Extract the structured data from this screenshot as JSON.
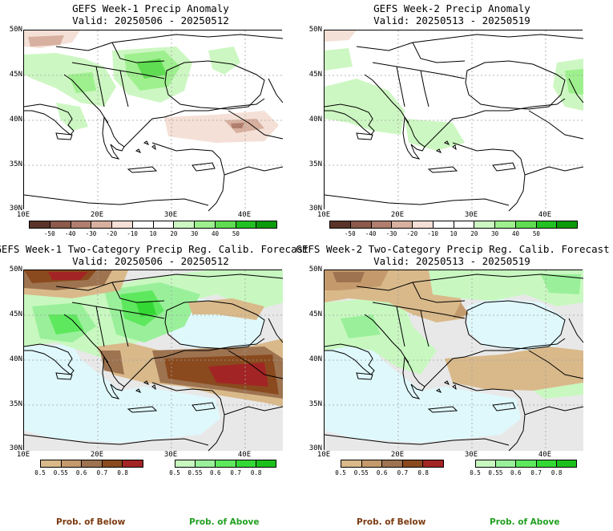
{
  "panels": [
    {
      "id": "p1",
      "title": "GEFS Week-1 Precip Anomaly",
      "valid": "Valid: 20250506 - 20250512"
    },
    {
      "id": "p2",
      "title": "GEFS Week-2 Precip Anomaly",
      "valid": "Valid: 20250513 - 20250519"
    },
    {
      "id": "p3",
      "title": "GEFS Week-1 Two-Category Precip Reg. Calib. Forecast",
      "valid": "Valid: 20250506 - 20250512"
    },
    {
      "id": "p4",
      "title": "GEFS Week-2 Two-Category Precip Reg. Calib. Forecast",
      "valid": "Valid: 20250513 - 20250519"
    }
  ],
  "axes": {
    "lat_labels": [
      "50N",
      "45N",
      "40N",
      "35N",
      "30N"
    ],
    "lon_labels": [
      "10E",
      "20E",
      "30E",
      "40E"
    ]
  },
  "anomaly_colorbar": {
    "labels": [
      "-50",
      "-40",
      "-30",
      "-20",
      "-10",
      "10",
      "20",
      "30",
      "40",
      "50"
    ],
    "colors": [
      "#5a3429",
      "#8b5a4a",
      "#b07e6e",
      "#d8b0a0",
      "#f4e0d6",
      "#ffffff",
      "#ffffff",
      "#cdf7c2",
      "#9ef08e",
      "#5fdc52",
      "#22c022",
      "#0a9a0a"
    ]
  },
  "prob_colorbars": {
    "below_labels": [
      "0.5",
      "0.55",
      "0.6",
      "0.7",
      "0.8"
    ],
    "below_colors": [
      "#d9b98a",
      "#c49a6c",
      "#9e7350",
      "#8a4a1e",
      "#a32424"
    ],
    "above_labels": [
      "0.5",
      "0.55",
      "0.6",
      "0.7",
      "0.8"
    ],
    "above_colors": [
      "#c8f8c0",
      "#9af09a",
      "#5ee85e",
      "#34d834",
      "#1cc01c"
    ]
  },
  "legend": {
    "below_label": "Prob. of Below",
    "above_label": "Prob. of Above",
    "below_color": "#7b3a10",
    "above_color": "#22a022"
  },
  "colors": {
    "sea": "#dff8fc",
    "nodata": "#e8e8e8"
  }
}
